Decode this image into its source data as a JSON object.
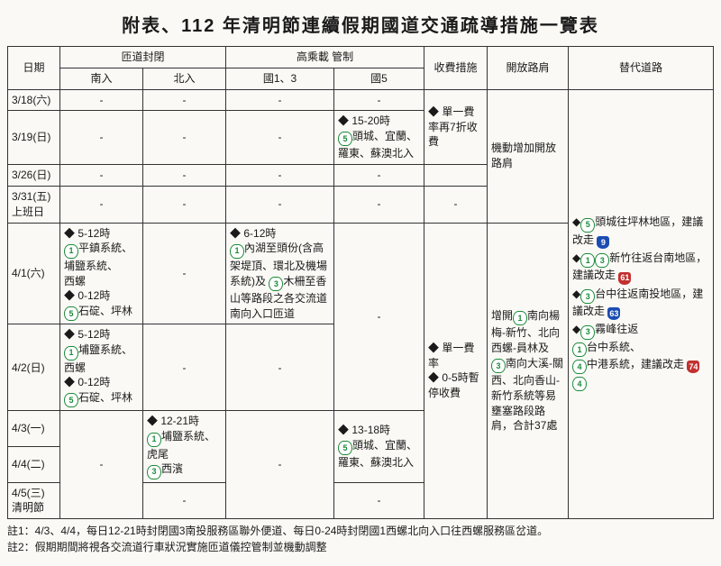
{
  "title": "附表、112 年清明節連續假期國道交通疏導措施一覽表",
  "headers": {
    "date": "日期",
    "rampClosure": "匝道封閉",
    "rampSouth": "南入",
    "rampNorth": "北入",
    "hov": "高乘載 管制",
    "hov13": "國1、3",
    "hov5": "國5",
    "toll": "收費措施",
    "shoulder": "開放路肩",
    "alt": "替代道路"
  },
  "dates": {
    "r1": "3/18(六)",
    "r2": "3/19(日)",
    "r3": "3/26(日)",
    "r4a": "3/31(五)",
    "r4b": "上班日",
    "r5": "4/1(六)",
    "r6": "4/2(日)",
    "r7": "4/3(一)",
    "r8": "4/4(二)",
    "r9a": "4/5(三)",
    "r9b": "清明節"
  },
  "cells": {
    "dash": "-",
    "hov5_319_a": "◆ 15-20時",
    "hov5_319_b": "頭城、宜蘭、",
    "hov5_319_c": "羅東、蘇澳北入",
    "toll_319": "◆ 單一費率再7折收費",
    "shoulder_top": "機動增加開放路肩",
    "ramp_s_41_a": "◆ 5-12時",
    "ramp_s_41_b": "平鎮系統、",
    "ramp_s_41_c": "埔鹽系統、",
    "ramp_s_41_d": "西螺",
    "ramp_s_41_e": "◆ 0-12時",
    "ramp_s_41_f": "石碇、坪林",
    "hov13_41_a": "◆ 6-12時",
    "hov13_41_b": "內湖至頭份(含高架堤頂、環北及機場系統)及",
    "hov13_41_c": "木柵至香山等路段之各交流道南向入口匝道",
    "ramp_s_42_a": "◆ 5-12時",
    "ramp_s_42_b": "埔鹽系統、",
    "ramp_s_42_c": "西螺",
    "ramp_s_42_d": "◆ 0-12時",
    "ramp_s_42_e": "石碇、坪林",
    "hov5_43_a": "◆ 13-18時",
    "hov5_43_b": "頭城、宜蘭、",
    "hov5_43_c": "羅東、蘇澳北入",
    "ramp_n_43_a": "◆ 12-21時",
    "ramp_n_43_b": "埔鹽系統、",
    "ramp_n_43_c": "虎尾",
    "ramp_n_43_d": "西濱",
    "toll_41_a": "◆ 單一費率",
    "toll_41_b": "◆ 0-5時暫停收費",
    "shoulder_41_a": "增開",
    "shoulder_41_b": "南向楊梅-新竹、北向西螺-員林及",
    "shoulder_41_c": "南向大溪-關西、北向香山-新竹系統等易壅塞路段路肩，合計37處",
    "alt_a": "頭城往坪林地區，建議改走",
    "alt_b": "新竹往返台南地區，建議改走",
    "alt_c": "台中往返南投地區，建議改走",
    "alt_d": "霧峰往返",
    "alt_e": "台中系統、",
    "alt_f": "中港系統，建議改走",
    "b9": "9",
    "b61": "61",
    "b63": "63",
    "b74": "74",
    "bf1": "1",
    "bf3": "3",
    "bf5": "5",
    "bf4": "4"
  },
  "notes": {
    "n1": "註1：4/3、4/4，每日12-21時封閉國3南投服務區聯外便道、每日0-24時封閉國1西螺北向入口往西螺服務區岔道。",
    "n2": "註2：假期期間將視各交流道行車狀況實施匝道儀控管制並機動調整"
  }
}
